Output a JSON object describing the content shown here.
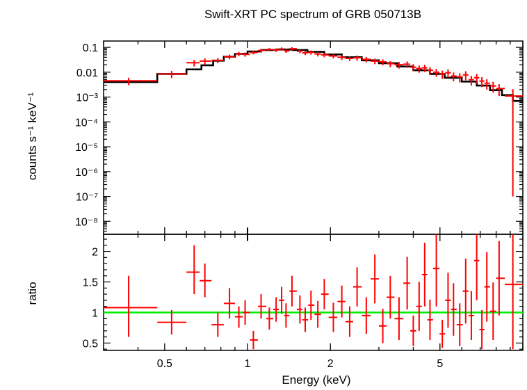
{
  "chart_data": [
    {
      "type": "scatter",
      "panel": "spectrum",
      "title": "Swift-XRT PC spectrum of GRB 050713B",
      "xlabel": "Energy (keV)",
      "ylabel": "counts s⁻¹ keV⁻¹",
      "x_scale": "log",
      "y_scale": "log",
      "xlim": [
        0.3,
        10
      ],
      "ylim": [
        3e-09,
        0.18
      ],
      "grid": false,
      "y_ticks": [
        {
          "value": 0.1,
          "label": "0.1"
        },
        {
          "value": 0.01,
          "label": "0.01"
        },
        {
          "value": 0.001,
          "label": "10⁻³"
        },
        {
          "value": 0.0001,
          "label": "10⁻⁴"
        },
        {
          "value": 1e-05,
          "label": "10⁻⁵"
        },
        {
          "value": 1e-06,
          "label": "10⁻⁶"
        },
        {
          "value": 1e-07,
          "label": "10⁻⁷"
        },
        {
          "value": 1e-08,
          "label": "10⁻⁸"
        }
      ],
      "series": [
        {
          "kind": "model",
          "color": "#000000",
          "x": [
            0.3,
            0.47,
            0.47,
            0.6,
            0.6,
            0.68,
            0.68,
            0.75,
            0.75,
            0.82,
            0.82,
            0.9,
            0.9,
            1.0,
            1.0,
            1.12,
            1.12,
            1.27,
            1.27,
            1.45,
            1.45,
            1.65,
            1.65,
            1.9,
            1.9,
            2.2,
            2.2,
            2.6,
            2.6,
            3.0,
            3.0,
            3.5,
            3.5,
            4.0,
            4.0,
            4.6,
            4.6,
            5.2,
            5.2,
            6.0,
            6.0,
            6.8,
            6.8,
            7.6,
            7.6,
            8.4,
            8.4,
            9.2,
            9.2,
            10.0
          ],
          "y": [
            0.004,
            0.004,
            0.0085,
            0.0085,
            0.013,
            0.013,
            0.019,
            0.019,
            0.029,
            0.029,
            0.042,
            0.042,
            0.055,
            0.055,
            0.068,
            0.068,
            0.078,
            0.078,
            0.082,
            0.082,
            0.078,
            0.078,
            0.066,
            0.066,
            0.052,
            0.052,
            0.04,
            0.04,
            0.03,
            0.03,
            0.023,
            0.023,
            0.017,
            0.017,
            0.012,
            0.012,
            0.0085,
            0.0085,
            0.006,
            0.006,
            0.0042,
            0.0042,
            0.0029,
            0.0029,
            0.0019,
            0.0019,
            0.0012,
            0.0012,
            0.0007,
            0.0007
          ]
        },
        {
          "kind": "data",
          "color": "#ff0000",
          "x": [
            0.37,
            0.53,
            0.64,
            0.7,
            0.78,
            0.86,
            0.93,
            0.98,
            1.05,
            1.12,
            1.2,
            1.27,
            1.33,
            1.38,
            1.45,
            1.55,
            1.62,
            1.7,
            1.8,
            1.9,
            2.05,
            2.2,
            2.35,
            2.5,
            2.7,
            2.9,
            3.1,
            3.3,
            3.55,
            3.8,
            4.0,
            4.2,
            4.4,
            4.6,
            4.85,
            5.1,
            5.35,
            5.6,
            5.9,
            6.2,
            6.5,
            6.8,
            7.1,
            7.4,
            7.8,
            8.2,
            9.2
          ],
          "y": [
            0.0045,
            0.0085,
            0.024,
            0.028,
            0.03,
            0.042,
            0.055,
            0.052,
            0.062,
            0.075,
            0.082,
            0.078,
            0.086,
            0.072,
            0.088,
            0.07,
            0.06,
            0.063,
            0.054,
            0.05,
            0.045,
            0.04,
            0.036,
            0.038,
            0.033,
            0.028,
            0.026,
            0.022,
            0.02,
            0.021,
            0.016,
            0.014,
            0.015,
            0.012,
            0.01,
            0.0085,
            0.0095,
            0.007,
            0.0065,
            0.0078,
            0.005,
            0.006,
            0.0044,
            0.0036,
            0.0028,
            0.0022,
            0.0011
          ],
          "x_lo": [
            0.3,
            0.47,
            0.6,
            0.67,
            0.74,
            0.82,
            0.9,
            0.96,
            1.02,
            1.09,
            1.17,
            1.24,
            1.3,
            1.36,
            1.42,
            1.51,
            1.58,
            1.66,
            1.75,
            1.85,
            1.97,
            2.12,
            2.27,
            2.42,
            2.6,
            2.8,
            3.0,
            3.2,
            3.42,
            3.68,
            3.9,
            4.1,
            4.3,
            4.5,
            4.72,
            4.98,
            5.22,
            5.48,
            5.75,
            6.05,
            6.35,
            6.65,
            6.95,
            7.25,
            7.6,
            8.0,
            8.6
          ],
          "x_hi": [
            0.47,
            0.6,
            0.67,
            0.74,
            0.82,
            0.9,
            0.96,
            1.02,
            1.09,
            1.17,
            1.24,
            1.3,
            1.36,
            1.42,
            1.51,
            1.58,
            1.66,
            1.75,
            1.85,
            1.97,
            2.12,
            2.27,
            2.42,
            2.6,
            2.8,
            3.0,
            3.2,
            3.42,
            3.68,
            3.9,
            4.1,
            4.3,
            4.5,
            4.72,
            4.98,
            5.22,
            5.48,
            5.75,
            6.05,
            6.35,
            6.65,
            6.95,
            7.25,
            7.6,
            8.0,
            8.6,
            10.0
          ],
          "y_lo": [
            0.003,
            0.0058,
            0.017,
            0.02,
            0.023,
            0.033,
            0.044,
            0.042,
            0.052,
            0.064,
            0.07,
            0.066,
            0.073,
            0.06,
            0.074,
            0.058,
            0.049,
            0.051,
            0.043,
            0.04,
            0.036,
            0.031,
            0.028,
            0.029,
            0.025,
            0.021,
            0.019,
            0.016,
            0.014,
            0.015,
            0.011,
            0.0095,
            0.01,
            0.008,
            0.0065,
            0.0054,
            0.006,
            0.0043,
            0.0039,
            0.0047,
            0.0029,
            0.0035,
            0.0025,
            0.002,
            0.0015,
            0.0011,
            1e-07
          ],
          "y_hi": [
            0.006,
            0.0112,
            0.031,
            0.036,
            0.037,
            0.051,
            0.066,
            0.062,
            0.072,
            0.086,
            0.094,
            0.09,
            0.099,
            0.084,
            0.102,
            0.082,
            0.071,
            0.075,
            0.065,
            0.06,
            0.054,
            0.049,
            0.044,
            0.047,
            0.041,
            0.035,
            0.033,
            0.028,
            0.026,
            0.027,
            0.021,
            0.0185,
            0.02,
            0.016,
            0.0135,
            0.0116,
            0.013,
            0.0097,
            0.0091,
            0.0109,
            0.0071,
            0.0085,
            0.0063,
            0.0052,
            0.0041,
            0.0033,
            0.0021
          ]
        }
      ]
    },
    {
      "type": "scatter",
      "panel": "ratio",
      "xlabel": "Energy (keV)",
      "ylabel": "ratio",
      "x_scale": "log",
      "xlim": [
        0.3,
        10
      ],
      "ylim": [
        0.38,
        2.28
      ],
      "grid": false,
      "reference_line": {
        "y": 1,
        "color": "#00ee00"
      },
      "x_ticks": [
        {
          "value": 0.5,
          "label": "0.5"
        },
        {
          "value": 1,
          "label": "1"
        },
        {
          "value": 2,
          "label": "2"
        },
        {
          "value": 5,
          "label": "5"
        }
      ],
      "y_ticks": [
        {
          "value": 0.5,
          "label": "0.5"
        },
        {
          "value": 1,
          "label": "1"
        },
        {
          "value": 1.5,
          "label": "1.5"
        },
        {
          "value": 2,
          "label": "2"
        }
      ],
      "series": [
        {
          "kind": "data",
          "color": "#ff0000",
          "x": [
            0.37,
            0.53,
            0.64,
            0.7,
            0.78,
            0.86,
            0.93,
            0.98,
            1.05,
            1.12,
            1.2,
            1.27,
            1.33,
            1.38,
            1.45,
            1.55,
            1.62,
            1.7,
            1.8,
            1.9,
            2.05,
            2.2,
            2.35,
            2.5,
            2.7,
            2.9,
            3.1,
            3.3,
            3.55,
            3.8,
            4.0,
            4.2,
            4.4,
            4.6,
            4.85,
            5.1,
            5.35,
            5.6,
            5.9,
            6.2,
            6.5,
            6.8,
            7.1,
            7.4,
            7.8,
            8.2,
            9.2
          ],
          "y": [
            1.08,
            0.84,
            1.66,
            1.52,
            0.8,
            1.15,
            0.93,
            1.0,
            0.55,
            1.1,
            0.9,
            1.05,
            1.2,
            0.95,
            1.35,
            1.05,
            0.88,
            1.12,
            0.97,
            1.3,
            0.92,
            1.18,
            0.85,
            1.42,
            0.95,
            1.55,
            0.78,
            1.25,
            0.9,
            1.48,
            0.7,
            1.1,
            1.62,
            0.88,
            1.72,
            0.65,
            1.2,
            1.05,
            0.8,
            1.35,
            0.95,
            1.85,
            0.72,
            1.42,
            1.02,
            1.56,
            1.46
          ],
          "y_lo": [
            0.6,
            0.64,
            1.3,
            1.25,
            0.6,
            0.9,
            0.75,
            0.8,
            0.4,
            0.9,
            0.72,
            0.85,
            0.98,
            0.75,
            1.1,
            0.82,
            0.68,
            0.88,
            0.75,
            1.05,
            0.68,
            0.92,
            0.6,
            1.1,
            0.65,
            1.15,
            0.5,
            0.9,
            0.55,
            1.05,
            0.45,
            0.7,
            1.1,
            0.55,
            1.1,
            0.42,
            0.75,
            0.62,
            0.45,
            0.82,
            0.55,
            1.2,
            0.4,
            0.85,
            0.55,
            0.95,
            0.4
          ],
          "y_hi": [
            1.6,
            1.04,
            2.1,
            1.8,
            1.0,
            1.4,
            1.1,
            1.2,
            0.7,
            1.3,
            1.08,
            1.25,
            1.42,
            1.15,
            1.6,
            1.28,
            1.08,
            1.36,
            1.19,
            1.55,
            1.16,
            1.44,
            1.1,
            1.74,
            1.25,
            1.95,
            1.06,
            1.6,
            1.25,
            1.91,
            0.95,
            1.5,
            2.14,
            1.21,
            2.28,
            0.88,
            1.65,
            1.48,
            1.15,
            1.88,
            1.35,
            2.28,
            1.04,
            1.99,
            1.49,
            2.17,
            2.28
          ]
        }
      ]
    }
  ]
}
